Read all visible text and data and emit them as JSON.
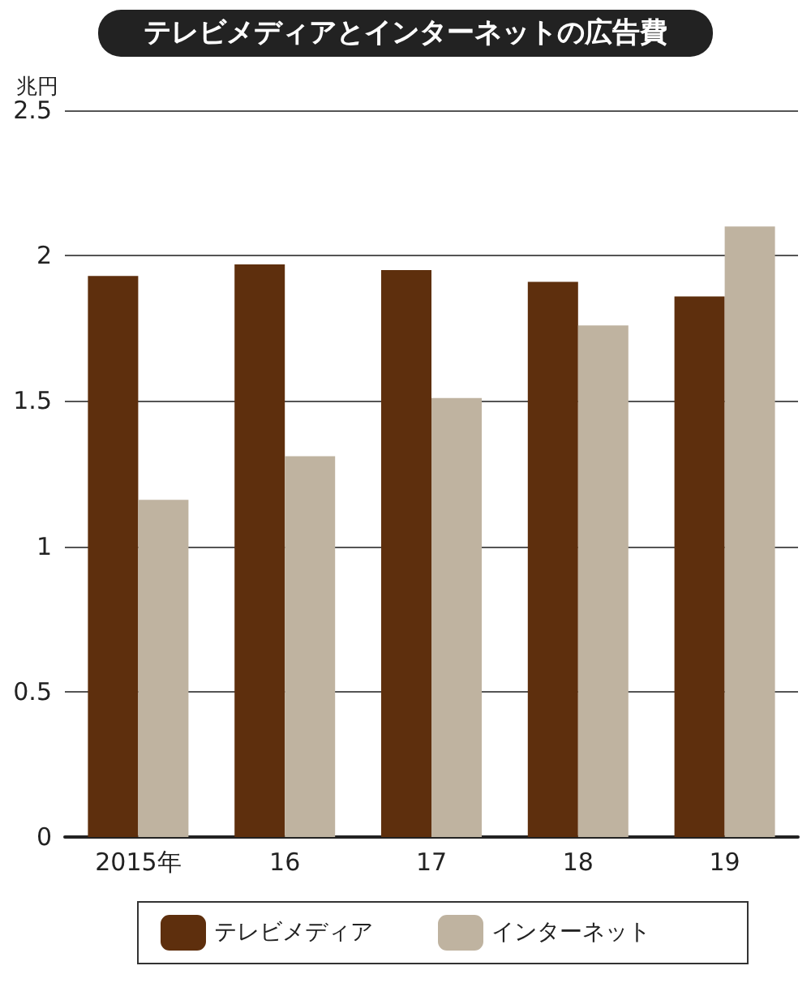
{
  "chart_data": {
    "type": "bar",
    "title": "テレビメディアとインターネットの広告費",
    "ylabel": "兆円",
    "categories": [
      "2015年",
      "16",
      "17",
      "18",
      "19"
    ],
    "series": [
      {
        "name": "テレビメディア",
        "color": "#5e2f0d",
        "values": [
          1.93,
          1.97,
          1.95,
          1.91,
          1.86
        ]
      },
      {
        "name": "インターネット",
        "color": "#bfb3a0",
        "values": [
          1.16,
          1.31,
          1.51,
          1.76,
          2.1
        ]
      }
    ],
    "ylim": [
      0,
      2.5
    ],
    "yticks": [
      0,
      0.5,
      1,
      1.5,
      2,
      2.5
    ],
    "grid": "y",
    "legend": "bottom"
  }
}
